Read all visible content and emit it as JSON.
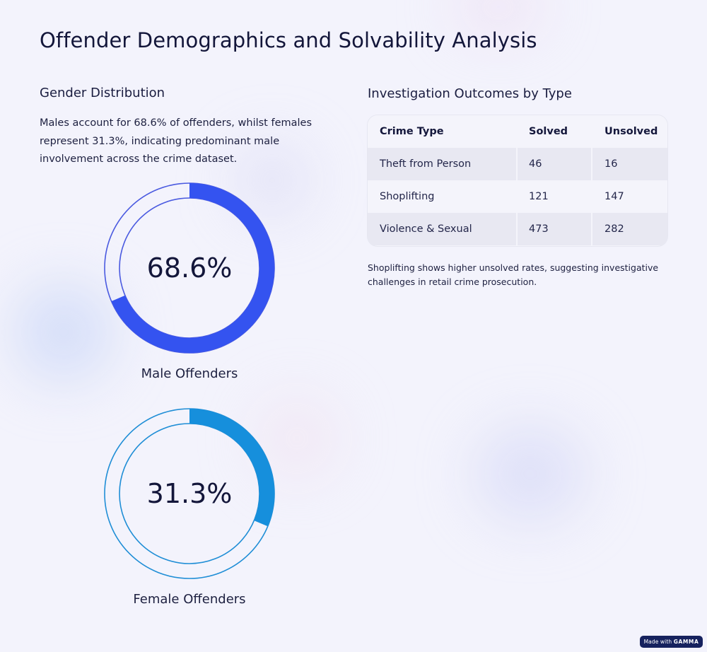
{
  "title": "Offender Demographics and Solvability Analysis",
  "left": {
    "heading": "Gender Distribution",
    "description": "Males account for 68.6% of offenders, whilst females represent 31.3%, indicating predominant male involvement across the crime dataset."
  },
  "right": {
    "heading": "Investigation Outcomes by Type",
    "note": "Shoplifting shows higher unsolved rates, suggesting investigative challenges in retail crime prosecution."
  },
  "chart_data": [
    {
      "type": "pie",
      "style": "donut",
      "title": "Male Offenders",
      "value": 68.6,
      "max": 100,
      "label": "68.6%",
      "color": "#3453f0",
      "track_color": "#4a5ae0"
    },
    {
      "type": "pie",
      "style": "donut",
      "title": "Female Offenders",
      "value": 31.3,
      "max": 100,
      "label": "31.3%",
      "color": "#168fdc",
      "track_color": "#1f8ed6"
    },
    {
      "type": "table",
      "title": "Investigation Outcomes by Type",
      "columns": [
        "Crime Type",
        "Solved",
        "Unsolved"
      ],
      "rows": [
        [
          "Theft from Person",
          "46",
          "16"
        ],
        [
          "Shoplifting",
          "121",
          "147"
        ],
        [
          "Violence & Sexual",
          "473",
          "282"
        ]
      ]
    }
  ],
  "badge": {
    "prefix": "Made with",
    "brand": "GAMMA"
  }
}
